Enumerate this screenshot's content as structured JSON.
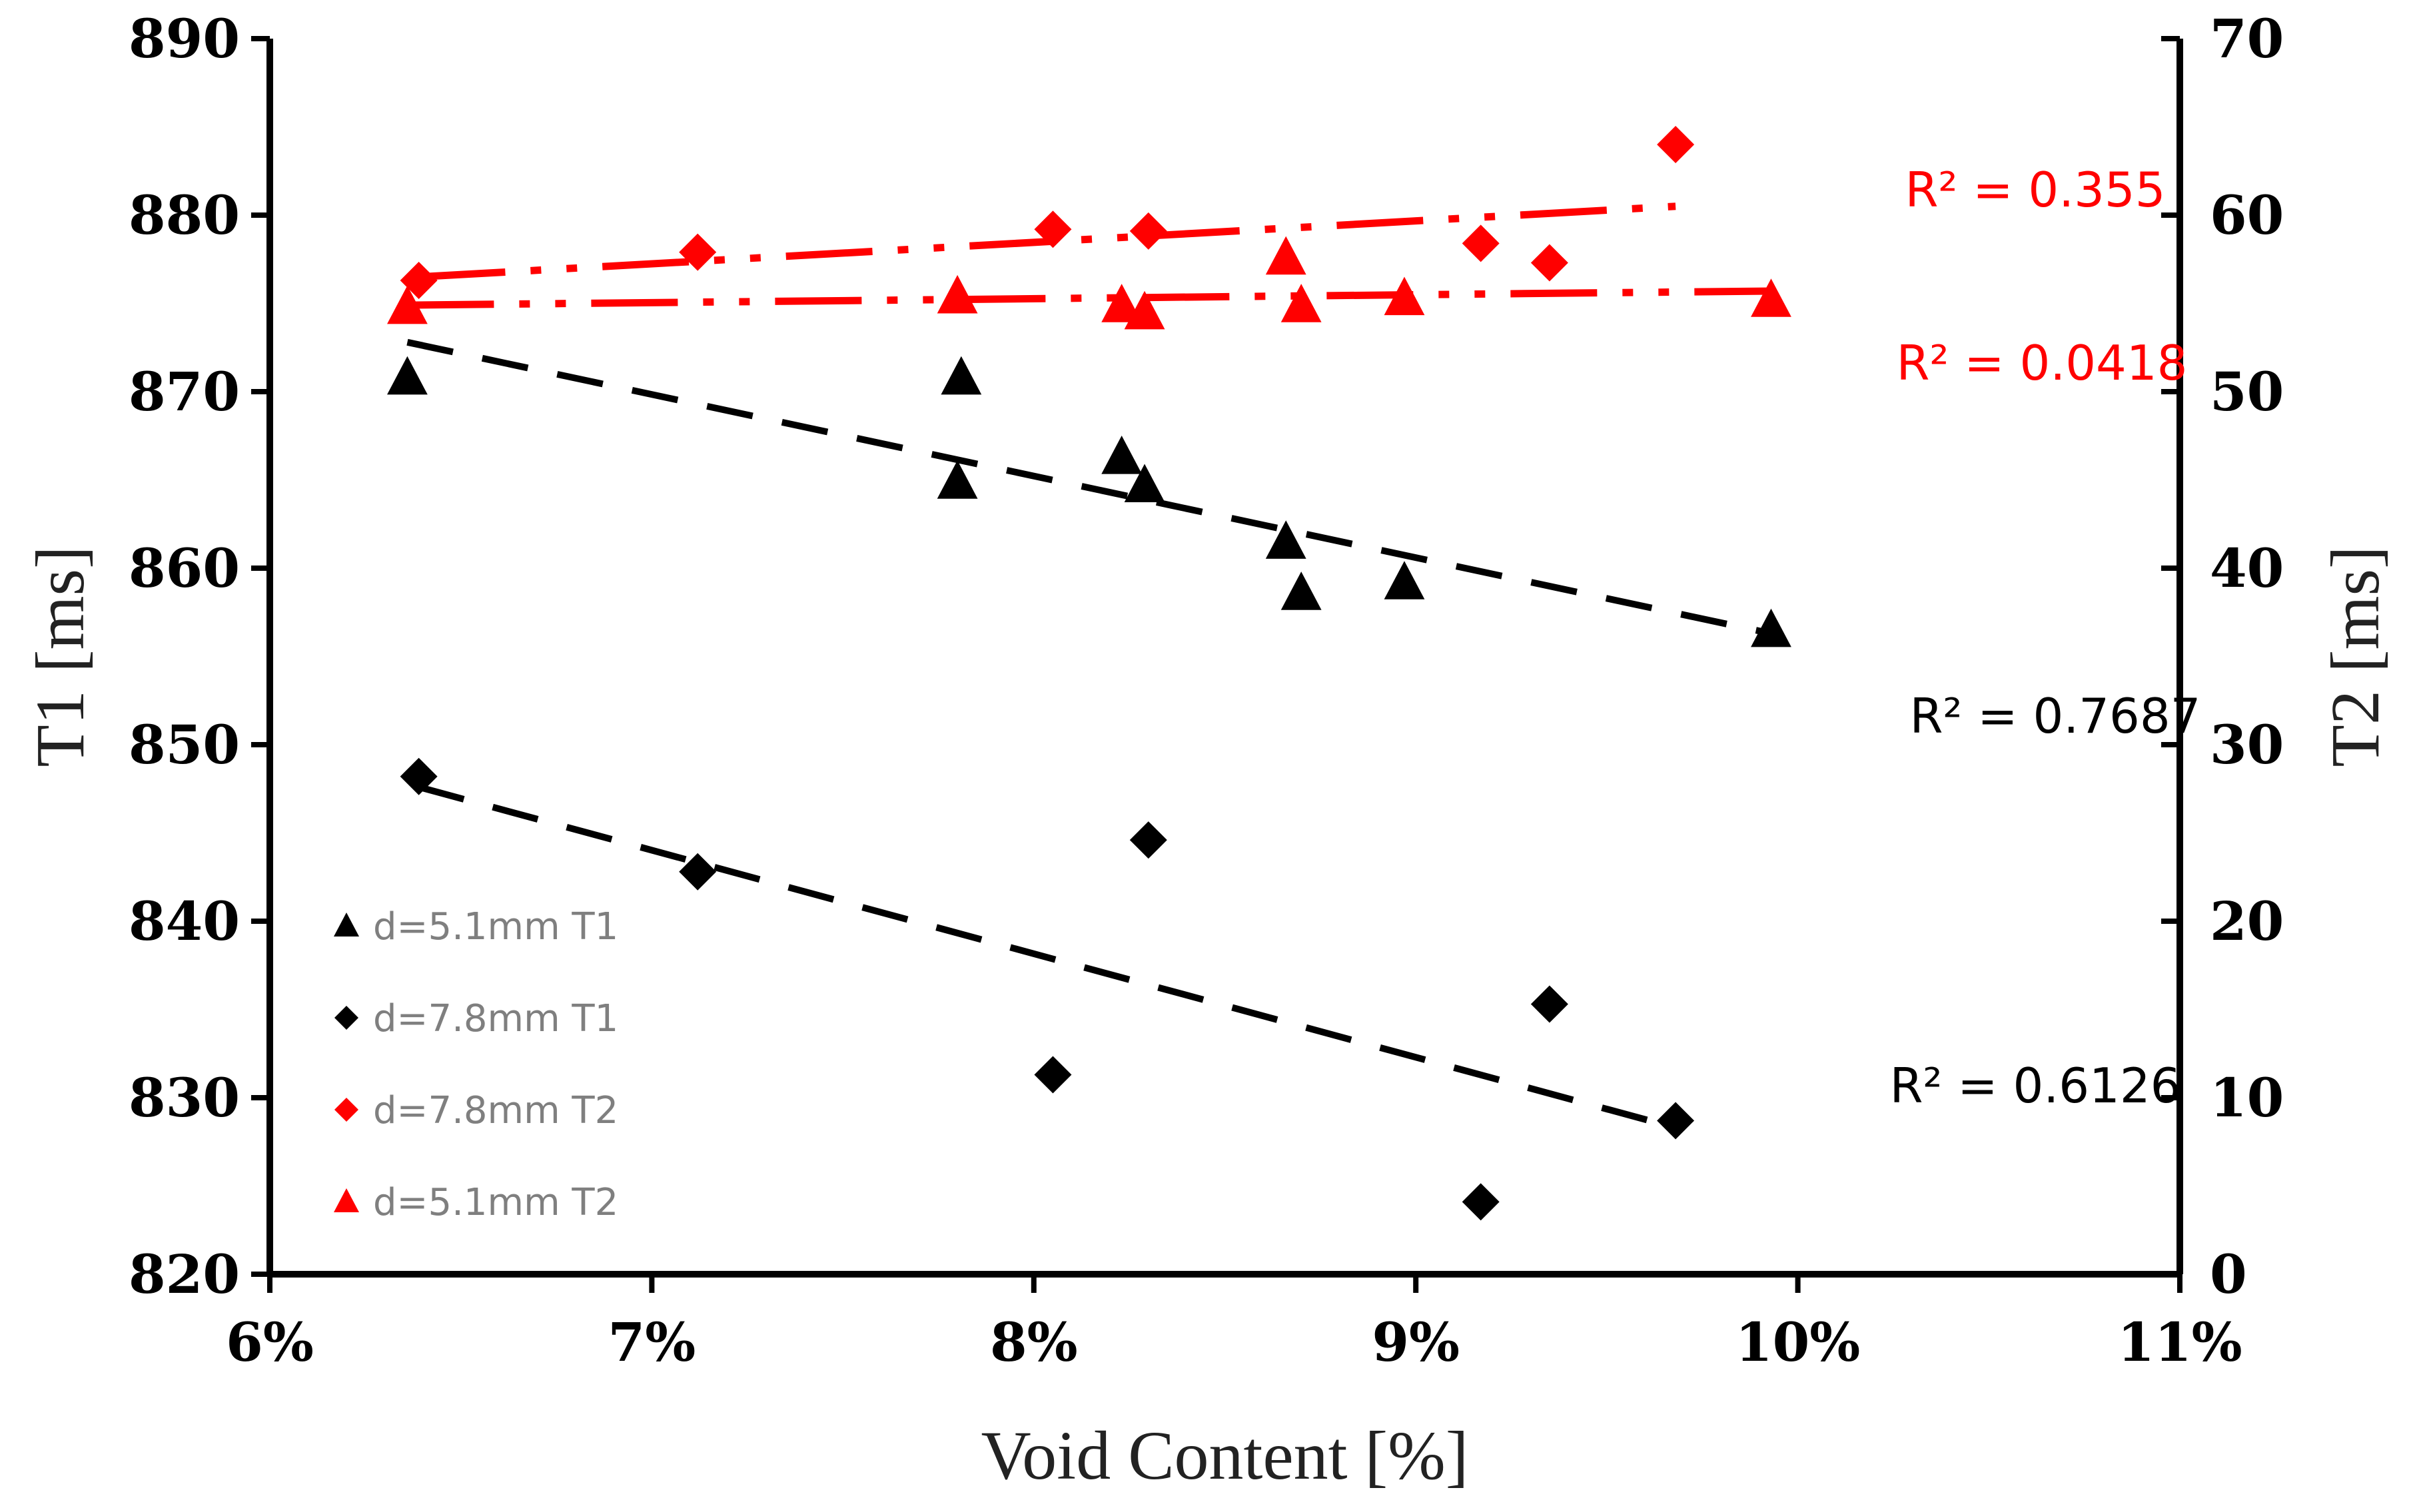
{
  "chart_data": {
    "type": "scatter",
    "title": "",
    "xlabel": "Void Content [%]",
    "ylabel_left": "T1 [ms]",
    "ylabel_right": "T2 [ms]",
    "xlim": [
      6,
      11
    ],
    "ylim_left": [
      820,
      890
    ],
    "ylim_right": [
      0,
      70
    ],
    "x_ticks": [
      6,
      7,
      8,
      9,
      10,
      11
    ],
    "x_tick_labels": [
      "6%",
      "7%",
      "8%",
      "9%",
      "10%",
      "11%"
    ],
    "y_left_ticks": [
      820,
      830,
      840,
      850,
      860,
      870,
      880,
      890
    ],
    "y_left_tick_labels": [
      "820",
      "830",
      "840",
      "850",
      "860",
      "870",
      "880",
      "890"
    ],
    "y_right_ticks": [
      0,
      10,
      20,
      30,
      40,
      50,
      60,
      70
    ],
    "y_right_tick_labels": [
      "0",
      "10",
      "20",
      "30",
      "40",
      "50",
      "60",
      "70"
    ],
    "grid": false,
    "legend_position": "bottom-left",
    "colors": {
      "black": "#000000",
      "red": "#ff0000",
      "legend_text": "#7f7f7f"
    },
    "series": [
      {
        "name": "d=5.1mm T1",
        "axis": "left",
        "marker": "triangle",
        "color": "#000000",
        "x": [
          6.36,
          7.81,
          7.8,
          8.23,
          8.29,
          8.66,
          8.7,
          8.97,
          9.93
        ],
        "y": [
          870.8,
          870.8,
          864.9,
          866.3,
          864.7,
          861.5,
          858.6,
          859.2,
          856.5
        ],
        "trend": {
          "style": "dash",
          "x_range": [
            6.36,
            9.93
          ],
          "y_range": [
            872.8,
            856.3
          ]
        },
        "r2_label": "R² = 0.7687"
      },
      {
        "name": "d=7.8mm T1",
        "axis": "left",
        "marker": "diamond",
        "color": "#000000",
        "x": [
          6.39,
          7.12,
          8.05,
          8.3,
          9.17,
          9.35,
          9.68
        ],
        "y": [
          848.2,
          842.8,
          831.3,
          844.6,
          824.1,
          835.3,
          828.7
        ],
        "trend": {
          "style": "dash",
          "x_range": [
            6.39,
            9.68
          ],
          "y_range": [
            847.6,
            828.3
          ]
        },
        "r2_label": "R² = 0.6126"
      },
      {
        "name": "d=7.8mm T2",
        "axis": "right",
        "marker": "diamond",
        "color": "#ff0000",
        "x": [
          6.39,
          7.12,
          8.05,
          8.3,
          9.17,
          9.35,
          9.68
        ],
        "y": [
          56.3,
          57.9,
          59.2,
          59.1,
          58.4,
          57.3,
          64.0
        ],
        "trend": {
          "style": "longdashdotdot",
          "x_range": [
            6.39,
            9.68
          ],
          "y_range": [
            56.5,
            60.5
          ]
        },
        "r2_label": "R² = 0.355"
      },
      {
        "name": "d=5.1mm T2",
        "axis": "right",
        "marker": "triangle",
        "color": "#ff0000",
        "x": [
          6.36,
          7.8,
          8.23,
          8.29,
          8.66,
          8.7,
          8.97,
          9.93
        ],
        "y": [
          54.8,
          55.4,
          54.9,
          54.5,
          57.6,
          54.9,
          55.3,
          55.2
        ],
        "trend": {
          "style": "longdashdotdot",
          "x_range": [
            6.36,
            9.93
          ],
          "y_range": [
            54.9,
            55.7
          ]
        },
        "r2_label": "R² = 0.0418"
      }
    ]
  }
}
